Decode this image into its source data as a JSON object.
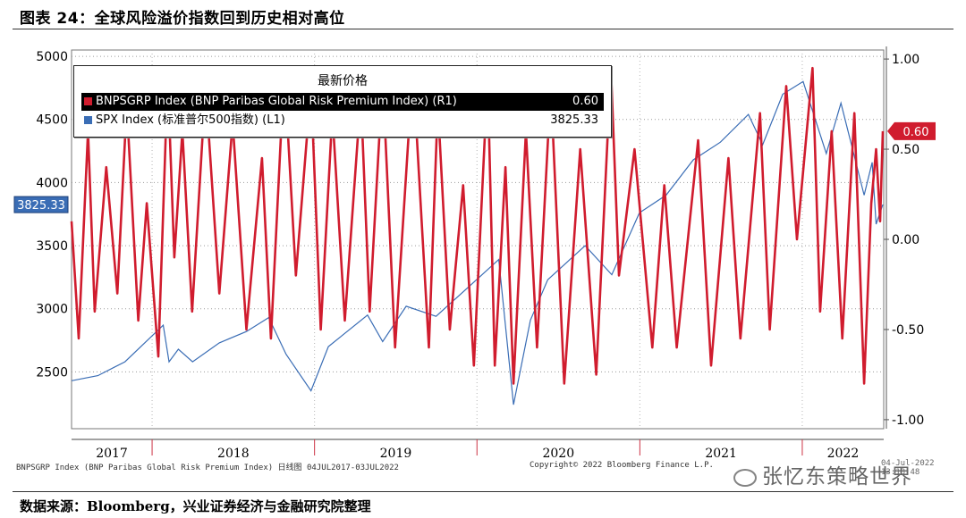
{
  "header": {
    "title": "图表 24：全球风险溢价指数回到历史相对高位"
  },
  "legend": {
    "title": "最新价格",
    "items": [
      {
        "label": "BNPSGRP Index (BNP Paribas Global Risk Premium Index) (R1)",
        "value": "0.60",
        "color": "#d01c2e"
      },
      {
        "label": "SPX Index (标准普尔500指数) (L1)",
        "value": "3825.33",
        "color": "#3a6db5"
      }
    ]
  },
  "footer": {
    "bloomberg_source": "BNPSGRP Index (BNP Paribas Global Risk Premium Index)  日线图 04JUL2017-03JUL2022",
    "copyright": "Copyright© 2022 Bloomberg Finance L.P.",
    "page_id": "04-Jul-2022 13:18:48",
    "watermark": "张忆东策略世界",
    "data_source": "数据来源：Bloomberg，兴业证券经济与金融研究院整理"
  },
  "chart_data": {
    "type": "line",
    "x_labels": [
      "2017",
      "2018",
      "2019",
      "2020",
      "2021",
      "2022"
    ],
    "xlim": [
      "2017-07-04",
      "2022-07-03"
    ],
    "left_axis": {
      "ticks": [
        "5000",
        "4500",
        "4000",
        "3500",
        "3000",
        "2500"
      ],
      "ylim": [
        2050,
        5050
      ],
      "last_value_label": "3825.33"
    },
    "right_axis": {
      "ticks": [
        "1.00",
        "0.50",
        "0.00",
        "-0.50",
        "-1.00"
      ],
      "ylim": [
        -1.05,
        1.05
      ],
      "last_value_label": "0.60"
    },
    "series": [
      {
        "name": "SPX Index (标准普尔500指数) (L1)",
        "axis": "left",
        "color": "#3a6db5",
        "points": [
          [
            "2017-07-04",
            2430
          ],
          [
            "2017-09-01",
            2470
          ],
          [
            "2017-11-01",
            2580
          ],
          [
            "2018-01-26",
            2870
          ],
          [
            "2018-02-08",
            2580
          ],
          [
            "2018-03-01",
            2680
          ],
          [
            "2018-04-02",
            2580
          ],
          [
            "2018-06-01",
            2730
          ],
          [
            "2018-08-01",
            2820
          ],
          [
            "2018-09-20",
            2930
          ],
          [
            "2018-10-29",
            2640
          ],
          [
            "2018-12-24",
            2350
          ],
          [
            "2019-02-01",
            2700
          ],
          [
            "2019-04-30",
            2950
          ],
          [
            "2019-06-03",
            2740
          ],
          [
            "2019-07-26",
            3020
          ],
          [
            "2019-10-01",
            2940
          ],
          [
            "2019-12-31",
            3230
          ],
          [
            "2020-02-19",
            3390
          ],
          [
            "2020-03-23",
            2240
          ],
          [
            "2020-04-30",
            2910
          ],
          [
            "2020-06-08",
            3230
          ],
          [
            "2020-08-31",
            3500
          ],
          [
            "2020-10-30",
            3270
          ],
          [
            "2020-12-31",
            3760
          ],
          [
            "2021-03-01",
            3900
          ],
          [
            "2021-05-01",
            4180
          ],
          [
            "2021-07-01",
            4320
          ],
          [
            "2021-09-02",
            4540
          ],
          [
            "2021-10-04",
            4300
          ],
          [
            "2021-11-18",
            4700
          ],
          [
            "2022-01-03",
            4800
          ],
          [
            "2022-02-24",
            4230
          ],
          [
            "2022-03-29",
            4630
          ],
          [
            "2022-05-20",
            3900
          ],
          [
            "2022-06-07",
            4160
          ],
          [
            "2022-06-16",
            3670
          ],
          [
            "2022-07-01",
            3825.33
          ]
        ]
      },
      {
        "name": "BNPSGRP Index (BNP Paribas Global Risk Premium Index) (R1)",
        "axis": "right",
        "color": "#d01c2e",
        "points": [
          [
            "2017-07-04",
            0.1
          ],
          [
            "2017-07-20",
            -0.55
          ],
          [
            "2017-08-10",
            0.6
          ],
          [
            "2017-08-25",
            -0.4
          ],
          [
            "2017-09-20",
            0.4
          ],
          [
            "2017-10-15",
            -0.3
          ],
          [
            "2017-11-05",
            0.75
          ],
          [
            "2017-12-01",
            -0.45
          ],
          [
            "2017-12-20",
            0.2
          ],
          [
            "2018-01-15",
            -0.65
          ],
          [
            "2018-02-05",
            0.9
          ],
          [
            "2018-02-20",
            -0.1
          ],
          [
            "2018-03-10",
            0.6
          ],
          [
            "2018-04-01",
            -0.4
          ],
          [
            "2018-05-01",
            0.85
          ],
          [
            "2018-06-01",
            -0.3
          ],
          [
            "2018-07-01",
            0.65
          ],
          [
            "2018-08-01",
            -0.5
          ],
          [
            "2018-09-05",
            0.45
          ],
          [
            "2018-09-25",
            -0.55
          ],
          [
            "2018-10-25",
            0.95
          ],
          [
            "2018-11-20",
            -0.2
          ],
          [
            "2018-12-24",
            0.85
          ],
          [
            "2019-01-15",
            -0.5
          ],
          [
            "2019-02-10",
            0.7
          ],
          [
            "2019-03-10",
            -0.45
          ],
          [
            "2019-04-15",
            0.8
          ],
          [
            "2019-05-05",
            -0.4
          ],
          [
            "2019-06-03",
            0.9
          ],
          [
            "2019-07-01",
            -0.6
          ],
          [
            "2019-08-10",
            0.95
          ],
          [
            "2019-09-15",
            -0.6
          ],
          [
            "2019-10-05",
            0.75
          ],
          [
            "2019-11-01",
            -0.5
          ],
          [
            "2019-12-01",
            0.3
          ],
          [
            "2019-12-25",
            -0.7
          ],
          [
            "2020-01-25",
            0.9
          ],
          [
            "2020-02-10",
            -0.7
          ],
          [
            "2020-03-05",
            0.4
          ],
          [
            "2020-03-23",
            -0.8
          ],
          [
            "2020-04-20",
            0.6
          ],
          [
            "2020-05-15",
            -0.6
          ],
          [
            "2020-06-15",
            0.85
          ],
          [
            "2020-07-15",
            -0.8
          ],
          [
            "2020-08-20",
            0.5
          ],
          [
            "2020-09-25",
            -0.75
          ],
          [
            "2020-10-28",
            0.95
          ],
          [
            "2020-11-15",
            -0.2
          ],
          [
            "2020-12-20",
            0.5
          ],
          [
            "2021-01-29",
            -0.6
          ],
          [
            "2021-02-25",
            0.3
          ],
          [
            "2021-03-25",
            -0.6
          ],
          [
            "2021-05-12",
            0.55
          ],
          [
            "2021-06-10",
            -0.7
          ],
          [
            "2021-07-19",
            0.45
          ],
          [
            "2021-08-15",
            -0.55
          ],
          [
            "2021-09-28",
            0.7
          ],
          [
            "2021-10-20",
            -0.5
          ],
          [
            "2021-11-26",
            0.85
          ],
          [
            "2021-12-20",
            0.0
          ],
          [
            "2022-01-24",
            0.95
          ],
          [
            "2022-02-10",
            -0.4
          ],
          [
            "2022-03-08",
            0.6
          ],
          [
            "2022-04-01",
            -0.55
          ],
          [
            "2022-04-28",
            0.7
          ],
          [
            "2022-05-20",
            -0.8
          ],
          [
            "2022-06-05",
            0.2
          ],
          [
            "2022-06-16",
            0.5
          ],
          [
            "2022-06-25",
            0.1
          ],
          [
            "2022-07-01",
            0.6
          ]
        ]
      }
    ],
    "grid": true,
    "legend_position": "top-left"
  }
}
